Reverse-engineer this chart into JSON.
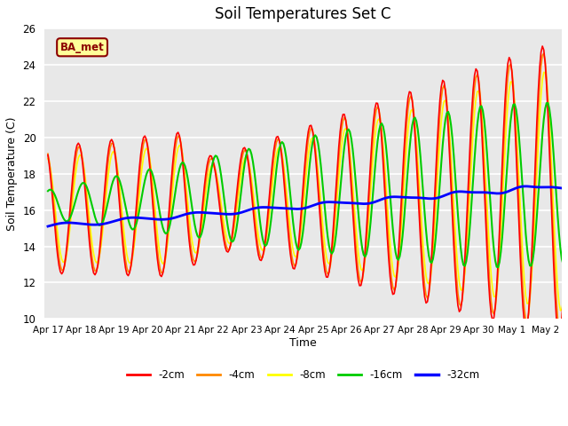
{
  "title": "Soil Temperatures Set C",
  "xlabel": "Time",
  "ylabel": "Soil Temperature (C)",
  "ylim": [
    10,
    26
  ],
  "xlim_days": [
    -0.1,
    15.5
  ],
  "x_tick_labels": [
    "Apr 17",
    "Apr 18",
    "Apr 19",
    "Apr 20",
    "Apr 21",
    "Apr 22",
    "Apr 23",
    "Apr 24",
    "Apr 25",
    "Apr 26",
    "Apr 27",
    "Apr 28",
    "Apr 29",
    "Apr 30",
    "May 1",
    "May 2"
  ],
  "x_tick_positions": [
    0,
    1,
    2,
    3,
    4,
    5,
    6,
    7,
    8,
    9,
    10,
    11,
    12,
    13,
    14,
    15
  ],
  "legend_labels": [
    "-2cm",
    "-4cm",
    "-8cm",
    "-16cm",
    "-32cm"
  ],
  "line_colors": [
    "#ff0000",
    "#ff8800",
    "#ffff00",
    "#00cc00",
    "#0000ff"
  ],
  "line_widths": [
    1.2,
    1.2,
    1.2,
    1.5,
    2.0
  ],
  "bg_color": "#e8e8e8",
  "fig_bg_color": "#ffffff",
  "grid_color": "#ffffff",
  "annotation_text": "BA_met",
  "annotation_bg": "#ffff99",
  "annotation_border": "#8B0000",
  "title_fontsize": 12,
  "axis_label_fontsize": 9,
  "yticks": [
    10,
    12,
    14,
    16,
    18,
    20,
    22,
    24,
    26
  ]
}
